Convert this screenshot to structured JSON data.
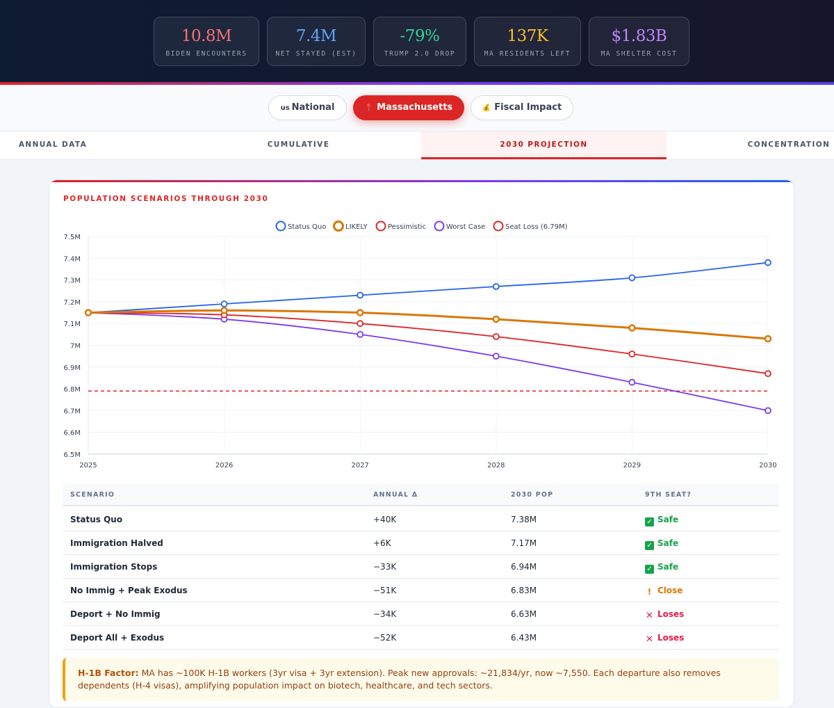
{
  "stats": [
    {
      "value": "10.8M",
      "label": "BIDEN ENCOUNTERS",
      "color": "#f87171"
    },
    {
      "value": "7.4M",
      "label": "NET STAYED (EST)",
      "color": "#60a5fa"
    },
    {
      "value": "-79%",
      "label": "TRUMP 2.0 DROP",
      "color": "#34d399"
    },
    {
      "value": "137K",
      "label": "MA RESIDENTS LEFT",
      "color": "#fbbf24"
    },
    {
      "value": "$1.83B",
      "label": "MA SHELTER COST",
      "color": "#c084fc"
    }
  ],
  "region_tabs": [
    {
      "icon": "us",
      "label": "National"
    },
    {
      "icon": "📍",
      "label": "Massachusetts"
    },
    {
      "icon": "💰",
      "label": "Fiscal Impact"
    }
  ],
  "view_tabs": [
    "ANNUAL DATA",
    "CUMULATIVE",
    "2030 PROJECTION",
    "CONCENTRATION"
  ],
  "card_title": "POPULATION SCENARIOS THROUGH 2030",
  "chart_data": {
    "type": "line",
    "title": "",
    "xlabel": "",
    "ylabel": "",
    "x": [
      2025,
      2026,
      2027,
      2028,
      2029,
      2030
    ],
    "ylim": [
      6.5,
      7.5
    ],
    "yticks": [
      6.5,
      6.6,
      6.7,
      6.8,
      6.9,
      7.0,
      7.1,
      7.2,
      7.3,
      7.4,
      7.5
    ],
    "ytick_labels": [
      "6.5M",
      "6.6M",
      "6.7M",
      "6.8M",
      "6.9M",
      "7M",
      "7.1M",
      "7.2M",
      "7.3M",
      "7.4M",
      "7.5M"
    ],
    "grid": true,
    "legend": "top-center",
    "series": [
      {
        "name": "Status Quo",
        "color": "#2563eb",
        "values": [
          7.15,
          7.19,
          7.23,
          7.27,
          7.31,
          7.38
        ]
      },
      {
        "name": "LIKELY",
        "color": "#d97706",
        "values": [
          7.15,
          7.16,
          7.15,
          7.12,
          7.08,
          7.03
        ]
      },
      {
        "name": "Pessimistic",
        "color": "#dc2626",
        "values": [
          7.15,
          7.14,
          7.1,
          7.04,
          6.96,
          6.87
        ]
      },
      {
        "name": "Worst Case",
        "color": "#7c3aed",
        "values": [
          7.15,
          7.12,
          7.05,
          6.95,
          6.83,
          6.7
        ]
      }
    ],
    "reference_lines": [
      {
        "name": "Seat Loss (6.79M)",
        "color": "#dc2626",
        "value": 6.79,
        "style": "dashed"
      }
    ]
  },
  "table": {
    "headers": [
      "SCENARIO",
      "ANNUAL Δ",
      "2030 POP",
      "9TH SEAT?"
    ],
    "rows": [
      {
        "scenario": "Status Quo",
        "delta": "+40K",
        "pop": "7.38M",
        "seat": "Safe",
        "status": "safe"
      },
      {
        "scenario": "Immigration Halved",
        "delta": "+6K",
        "pop": "7.17M",
        "seat": "Safe",
        "status": "safe"
      },
      {
        "scenario": "Immigration Stops",
        "delta": "−33K",
        "pop": "6.94M",
        "seat": "Safe",
        "status": "safe"
      },
      {
        "scenario": "No Immig + Peak Exodus",
        "delta": "−51K",
        "pop": "6.83M",
        "seat": "Close",
        "status": "close"
      },
      {
        "scenario": "Deport + No Immig",
        "delta": "−34K",
        "pop": "6.63M",
        "seat": "Loses",
        "status": "loses"
      },
      {
        "scenario": "Deport All + Exodus",
        "delta": "−52K",
        "pop": "6.43M",
        "seat": "Loses",
        "status": "loses"
      }
    ]
  },
  "status_colors": {
    "safe": "#16a34a",
    "close": "#d97706",
    "loses": "#e11d48"
  },
  "note": {
    "label": "H-1B Factor:",
    "text": " MA has ~100K H-1B workers (3yr visa + 3yr extension). Peak new approvals: ~21,834/yr, now ~7,550. Each departure also removes dependents (H-4 visas), amplifying population impact on biotech, healthcare, and tech sectors."
  }
}
